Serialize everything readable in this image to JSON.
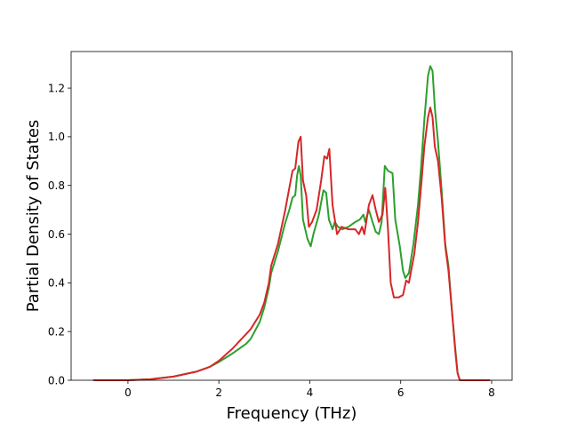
{
  "chart_data": {
    "type": "line",
    "title": "",
    "xlabel": "Frequency (THz)",
    "ylabel": "Partial Density of States",
    "xlim": [
      -1.25,
      8.45
    ],
    "ylim": [
      0.0,
      1.35
    ],
    "xticks": [
      0,
      2,
      4,
      6,
      8
    ],
    "yticks": [
      0.0,
      0.2,
      0.4,
      0.6,
      0.8,
      1.0,
      1.2
    ],
    "grid": false,
    "legend": "none",
    "series": [
      {
        "color": "#2ca02c",
        "points": [
          [
            -0.75,
            0.0
          ],
          [
            0.0,
            0.0
          ],
          [
            0.5,
            0.004
          ],
          [
            1.0,
            0.015
          ],
          [
            1.5,
            0.035
          ],
          [
            1.8,
            0.055
          ],
          [
            2.0,
            0.075
          ],
          [
            2.3,
            0.11
          ],
          [
            2.6,
            0.15
          ],
          [
            2.7,
            0.17
          ],
          [
            2.9,
            0.24
          ],
          [
            3.0,
            0.3
          ],
          [
            3.1,
            0.38
          ],
          [
            3.15,
            0.44
          ],
          [
            3.3,
            0.53
          ],
          [
            3.45,
            0.64
          ],
          [
            3.55,
            0.7
          ],
          [
            3.62,
            0.75
          ],
          [
            3.68,
            0.76
          ],
          [
            3.72,
            0.84
          ],
          [
            3.76,
            0.88
          ],
          [
            3.8,
            0.84
          ],
          [
            3.85,
            0.66
          ],
          [
            3.95,
            0.58
          ],
          [
            4.02,
            0.55
          ],
          [
            4.08,
            0.6
          ],
          [
            4.2,
            0.68
          ],
          [
            4.3,
            0.78
          ],
          [
            4.36,
            0.77
          ],
          [
            4.42,
            0.66
          ],
          [
            4.5,
            0.62
          ],
          [
            4.55,
            0.65
          ],
          [
            4.62,
            0.63
          ],
          [
            4.72,
            0.62
          ],
          [
            4.85,
            0.63
          ],
          [
            5.0,
            0.65
          ],
          [
            5.1,
            0.66
          ],
          [
            5.18,
            0.68
          ],
          [
            5.22,
            0.65
          ],
          [
            5.3,
            0.7
          ],
          [
            5.38,
            0.65
          ],
          [
            5.45,
            0.61
          ],
          [
            5.52,
            0.6
          ],
          [
            5.58,
            0.65
          ],
          [
            5.65,
            0.88
          ],
          [
            5.72,
            0.86
          ],
          [
            5.82,
            0.85
          ],
          [
            5.88,
            0.66
          ],
          [
            5.98,
            0.55
          ],
          [
            6.05,
            0.45
          ],
          [
            6.1,
            0.42
          ],
          [
            6.18,
            0.44
          ],
          [
            6.28,
            0.56
          ],
          [
            6.38,
            0.72
          ],
          [
            6.45,
            0.88
          ],
          [
            6.52,
            1.07
          ],
          [
            6.6,
            1.25
          ],
          [
            6.65,
            1.29
          ],
          [
            6.7,
            1.27
          ],
          [
            6.75,
            1.12
          ],
          [
            6.82,
            0.98
          ],
          [
            6.9,
            0.78
          ],
          [
            6.98,
            0.56
          ],
          [
            7.05,
            0.47
          ],
          [
            7.12,
            0.3
          ],
          [
            7.2,
            0.13
          ],
          [
            7.25,
            0.03
          ],
          [
            7.3,
            0.0
          ],
          [
            7.95,
            0.0
          ]
        ]
      },
      {
        "color": "#d62728",
        "points": [
          [
            -0.75,
            0.0
          ],
          [
            0.0,
            0.0
          ],
          [
            0.5,
            0.004
          ],
          [
            1.0,
            0.015
          ],
          [
            1.5,
            0.035
          ],
          [
            1.8,
            0.055
          ],
          [
            2.0,
            0.08
          ],
          [
            2.3,
            0.13
          ],
          [
            2.5,
            0.17
          ],
          [
            2.7,
            0.21
          ],
          [
            2.9,
            0.27
          ],
          [
            3.0,
            0.32
          ],
          [
            3.1,
            0.4
          ],
          [
            3.15,
            0.47
          ],
          [
            3.3,
            0.56
          ],
          [
            3.45,
            0.69
          ],
          [
            3.55,
            0.79
          ],
          [
            3.62,
            0.86
          ],
          [
            3.68,
            0.87
          ],
          [
            3.75,
            0.98
          ],
          [
            3.8,
            1.0
          ],
          [
            3.85,
            0.82
          ],
          [
            3.92,
            0.76
          ],
          [
            3.98,
            0.63
          ],
          [
            4.05,
            0.65
          ],
          [
            4.15,
            0.7
          ],
          [
            4.25,
            0.82
          ],
          [
            4.32,
            0.92
          ],
          [
            4.38,
            0.91
          ],
          [
            4.43,
            0.95
          ],
          [
            4.5,
            0.72
          ],
          [
            4.6,
            0.6
          ],
          [
            4.7,
            0.63
          ],
          [
            4.85,
            0.62
          ],
          [
            5.0,
            0.62
          ],
          [
            5.08,
            0.6
          ],
          [
            5.15,
            0.63
          ],
          [
            5.2,
            0.6
          ],
          [
            5.3,
            0.72
          ],
          [
            5.38,
            0.76
          ],
          [
            5.45,
            0.7
          ],
          [
            5.52,
            0.65
          ],
          [
            5.6,
            0.68
          ],
          [
            5.66,
            0.79
          ],
          [
            5.72,
            0.62
          ],
          [
            5.78,
            0.4
          ],
          [
            5.85,
            0.34
          ],
          [
            5.95,
            0.34
          ],
          [
            6.05,
            0.35
          ],
          [
            6.12,
            0.41
          ],
          [
            6.18,
            0.4
          ],
          [
            6.3,
            0.52
          ],
          [
            6.38,
            0.65
          ],
          [
            6.45,
            0.8
          ],
          [
            6.52,
            0.96
          ],
          [
            6.6,
            1.08
          ],
          [
            6.65,
            1.12
          ],
          [
            6.7,
            1.08
          ],
          [
            6.75,
            0.96
          ],
          [
            6.82,
            0.9
          ],
          [
            6.9,
            0.75
          ],
          [
            6.98,
            0.55
          ],
          [
            7.05,
            0.45
          ],
          [
            7.12,
            0.3
          ],
          [
            7.2,
            0.12
          ],
          [
            7.25,
            0.03
          ],
          [
            7.3,
            0.0
          ],
          [
            7.95,
            0.0
          ]
        ]
      }
    ]
  }
}
